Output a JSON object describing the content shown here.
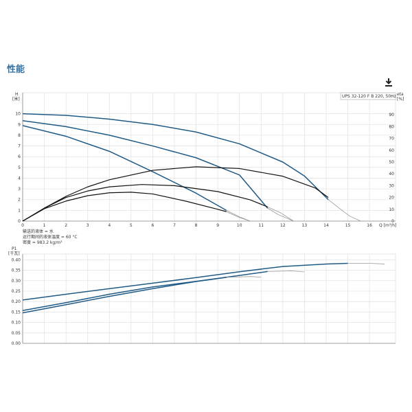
{
  "section_title": "性能",
  "download_icon": "download-icon",
  "colors": {
    "pump_curve": "#1f5a86",
    "efficiency_curve": "#111111",
    "faded_curve": "#9a9a9a",
    "grid": "#e4e4e4",
    "axis": "#888888"
  },
  "chart_data": [
    {
      "type": "line",
      "model_label": "UPS 32-120 F B 220, 50Hz",
      "ylabel": "H",
      "yunit": "[米]",
      "y2label": "eta",
      "y2unit": "[%]",
      "xlabel": "Q [m³/h]",
      "xlim": [
        0,
        17.2
      ],
      "ylim": [
        0,
        11
      ],
      "y2lim": [
        0,
        100
      ],
      "xticks": [
        "0",
        "1",
        "2",
        "3",
        "4",
        "5",
        "6",
        "7",
        "8",
        "9",
        "10",
        "11",
        "12",
        "13",
        "14",
        "15",
        "16"
      ],
      "yticks": [
        "0",
        "1",
        "2",
        "3",
        "4",
        "5",
        "6",
        "7",
        "8",
        "9",
        "10"
      ],
      "y2ticks": [
        "0",
        "10",
        "20",
        "30",
        "40",
        "50",
        "60",
        "70",
        "80",
        "90"
      ],
      "grid": true,
      "notes": [
        "输送的液体 = 水",
        "运行期间的液体温度 = 60 °C",
        "密度 = 983.2 kg/m³"
      ],
      "series": [
        {
          "style": "pump",
          "values": [
            [
              0,
              10
            ],
            [
              2,
              9.85
            ],
            [
              4,
              9.5
            ],
            [
              6,
              9
            ],
            [
              8,
              8.3
            ],
            [
              10,
              7.2
            ],
            [
              12,
              5.5
            ],
            [
              13,
              4.2
            ],
            [
              14.1,
              2
            ]
          ],
          "faded": [
            [
              14.1,
              2
            ],
            [
              14.6,
              1.2
            ],
            [
              15.1,
              0.45
            ],
            [
              15.6,
              0
            ]
          ]
        },
        {
          "style": "pump",
          "values": [
            [
              0,
              9.35
            ],
            [
              2,
              8.8
            ],
            [
              4,
              8
            ],
            [
              6,
              7
            ],
            [
              8,
              5.9
            ],
            [
              10,
              4.3
            ],
            [
              11.3,
              1.2
            ]
          ],
          "faded": [
            [
              11.3,
              1.2
            ],
            [
              11.8,
              0.6
            ],
            [
              12.5,
              0
            ]
          ]
        },
        {
          "style": "pump",
          "values": [
            [
              0,
              8.9
            ],
            [
              2,
              7.9
            ],
            [
              4,
              6.5
            ],
            [
              6,
              4.6
            ],
            [
              8,
              2.6
            ],
            [
              9.4,
              1
            ]
          ],
          "faded": [
            [
              9.4,
              1
            ],
            [
              10,
              0.4
            ],
            [
              10.5,
              0
            ]
          ]
        },
        {
          "style": "eff",
          "values": [
            [
              0,
              0
            ],
            [
              1,
              11
            ],
            [
              2,
              21
            ],
            [
              3,
              29
            ],
            [
              4,
              35
            ],
            [
              6,
              43
            ],
            [
              8,
              46
            ],
            [
              10,
              44.5
            ],
            [
              12,
              38
            ],
            [
              13.5,
              28
            ],
            [
              14.1,
              20
            ]
          ]
        },
        {
          "style": "eff",
          "values": [
            [
              0,
              0
            ],
            [
              1,
              11
            ],
            [
              2,
              20
            ],
            [
              3,
              25.5
            ],
            [
              4,
              29
            ],
            [
              5.5,
              31
            ],
            [
              7,
              30
            ],
            [
              9,
              25
            ],
            [
              10.5,
              18
            ],
            [
              11.3,
              12
            ]
          ],
          "faded": [
            [
              11.3,
              12
            ],
            [
              11.9,
              7
            ],
            [
              12.5,
              0
            ]
          ]
        },
        {
          "style": "eff",
          "values": [
            [
              0,
              0
            ],
            [
              1,
              10.5
            ],
            [
              2,
              17
            ],
            [
              3,
              21.5
            ],
            [
              4,
              24
            ],
            [
              5,
              24.5
            ],
            [
              6,
              23
            ],
            [
              7.5,
              17
            ],
            [
              9,
              10
            ],
            [
              9.4,
              8
            ]
          ],
          "faded": [
            [
              9.4,
              8
            ],
            [
              10,
              3
            ],
            [
              10.5,
              0
            ]
          ]
        }
      ]
    },
    {
      "type": "line",
      "ylabel": "P1",
      "yunit": "[千瓦]",
      "xlim": [
        0,
        17.2
      ],
      "ylim": [
        0,
        0.4275
      ],
      "yticks": [
        "0.00",
        "0.05",
        "0.10",
        "0.15",
        "0.20",
        "0.25",
        "0.30",
        "0.35",
        "0.40"
      ],
      "grid": true,
      "series": [
        {
          "style": "pump",
          "values": [
            [
              0,
              0.2075
            ],
            [
              2,
              0.235
            ],
            [
              4,
              0.262
            ],
            [
              6,
              0.288
            ],
            [
              8,
              0.315
            ],
            [
              10,
              0.343
            ],
            [
              12,
              0.368
            ],
            [
              14,
              0.38
            ],
            [
              15,
              0.383
            ]
          ],
          "faded": [
            [
              15,
              0.383
            ],
            [
              16,
              0.383
            ],
            [
              16.7,
              0.38
            ]
          ]
        },
        {
          "style": "pump",
          "values": [
            [
              0,
              0.157
            ],
            [
              2,
              0.195
            ],
            [
              4,
              0.235
            ],
            [
              6,
              0.27
            ],
            [
              8,
              0.297
            ],
            [
              10,
              0.325
            ],
            [
              11.3,
              0.344
            ]
          ],
          "faded": [
            [
              11.3,
              0.344
            ],
            [
              12.4,
              0.347
            ],
            [
              13,
              0.342
            ]
          ]
        },
        {
          "style": "pump",
          "values": [
            [
              0,
              0.146
            ],
            [
              2,
              0.185
            ],
            [
              4,
              0.225
            ],
            [
              6,
              0.262
            ],
            [
              8,
              0.296
            ],
            [
              9.4,
              0.316
            ]
          ],
          "faded": [
            [
              9.4,
              0.316
            ],
            [
              10.5,
              0.32
            ],
            [
              11,
              0.317
            ]
          ]
        }
      ]
    }
  ]
}
